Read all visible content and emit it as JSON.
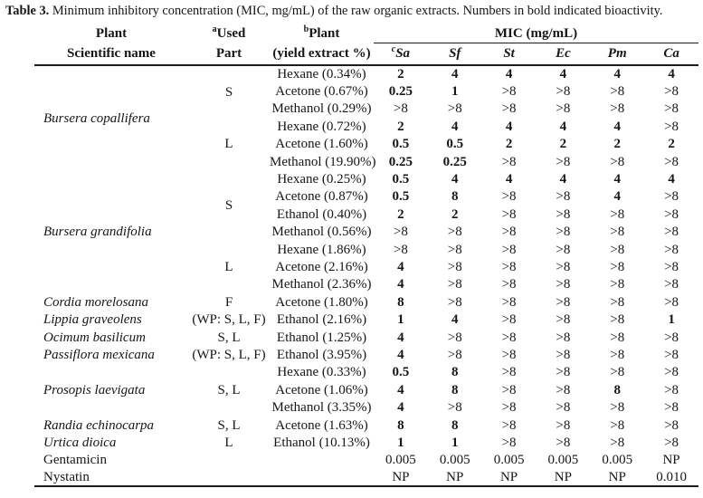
{
  "title": {
    "label": "Table 3.",
    "text": "Minimum inhibitory concentration (MIC, mg/mL) of the raw organic extracts. Numbers in bold indicated bioactivity."
  },
  "header": {
    "plant_line1": "Plant",
    "plant_line2": "Scientific name",
    "used_sup": "a",
    "used_line1": "Used",
    "used_line2": "Part",
    "yield_sup": "b",
    "yield_line1": "Plant",
    "yield_line2": "(yield extract %)",
    "mic_group": "MIC (mg/mL)",
    "organisms": [
      {
        "sup": "c",
        "name": "Sa"
      },
      {
        "sup": "",
        "name": "Sf"
      },
      {
        "sup": "",
        "name": "St"
      },
      {
        "sup": "",
        "name": "Ec"
      },
      {
        "sup": "",
        "name": "Pm"
      },
      {
        "sup": "",
        "name": "Ca"
      }
    ]
  },
  "rows": [
    {
      "plant": "Bursera copallifera",
      "plant_rs": 6,
      "part": "S",
      "part_rs": 3,
      "extract": "Hexane (0.34%)",
      "mic": [
        "2",
        "4",
        "4",
        "4",
        "4",
        "4"
      ],
      "bold": [
        1,
        1,
        1,
        1,
        1,
        1
      ]
    },
    {
      "extract": "Acetone (0.67%)",
      "mic": [
        "0.25",
        "1",
        ">8",
        ">8",
        ">8",
        ">8"
      ],
      "bold": [
        1,
        1,
        0,
        0,
        0,
        0
      ]
    },
    {
      "extract": "Methanol (0.29%)",
      "mic": [
        ">8",
        ">8",
        ">8",
        ">8",
        ">8",
        ">8"
      ],
      "bold": [
        0,
        0,
        0,
        0,
        0,
        0
      ]
    },
    {
      "part": "L",
      "part_rs": 3,
      "extract": "Hexane (0.72%)",
      "mic": [
        "2",
        "4",
        "4",
        "4",
        "4",
        ">8"
      ],
      "bold": [
        1,
        1,
        1,
        1,
        1,
        0
      ]
    },
    {
      "extract": "Acetone (1.60%)",
      "mic": [
        "0.5",
        "0.5",
        "2",
        "2",
        "2",
        "2"
      ],
      "bold": [
        1,
        1,
        1,
        1,
        1,
        1
      ]
    },
    {
      "extract": "Methanol (19.90%)",
      "mic": [
        "0.25",
        "0.25",
        ">8",
        ">8",
        ">8",
        ">8"
      ],
      "bold": [
        1,
        1,
        0,
        0,
        0,
        0
      ]
    },
    {
      "plant": "Bursera grandifolia",
      "plant_rs": 7,
      "part": "S",
      "part_rs": 4,
      "extract": "Hexane (0.25%)",
      "mic": [
        "0.5",
        "4",
        "4",
        "4",
        "4",
        "4"
      ],
      "bold": [
        1,
        1,
        1,
        1,
        1,
        1
      ]
    },
    {
      "extract": "Acetone (0.87%)",
      "mic": [
        "0.5",
        "8",
        ">8",
        ">8",
        "4",
        ">8"
      ],
      "bold": [
        1,
        1,
        0,
        0,
        1,
        0
      ]
    },
    {
      "extract": "Ethanol (0.40%)",
      "mic": [
        "2",
        "2",
        ">8",
        ">8",
        ">8",
        ">8"
      ],
      "bold": [
        1,
        1,
        0,
        0,
        0,
        0
      ]
    },
    {
      "extract": "Methanol (0.56%)",
      "mic": [
        ">8",
        ">8",
        ">8",
        ">8",
        ">8",
        ">8"
      ],
      "bold": [
        0,
        0,
        0,
        0,
        0,
        0
      ]
    },
    {
      "part": "L",
      "part_rs": 3,
      "extract": "Hexane (1.86%)",
      "mic": [
        ">8",
        ">8",
        ">8",
        ">8",
        ">8",
        ">8"
      ],
      "bold": [
        0,
        0,
        0,
        0,
        0,
        0
      ]
    },
    {
      "extract": "Acetone (2.16%)",
      "mic": [
        "4",
        ">8",
        ">8",
        ">8",
        ">8",
        ">8"
      ],
      "bold": [
        1,
        0,
        0,
        0,
        0,
        0
      ]
    },
    {
      "extract": "Methanol (2.36%)",
      "mic": [
        "4",
        ">8",
        ">8",
        ">8",
        ">8",
        ">8"
      ],
      "bold": [
        1,
        0,
        0,
        0,
        0,
        0
      ]
    },
    {
      "plant": "Cordia morelosana",
      "part": "F",
      "extract": "Acetone (1.80%)",
      "mic": [
        "8",
        ">8",
        ">8",
        ">8",
        ">8",
        ">8"
      ],
      "bold": [
        1,
        0,
        0,
        0,
        0,
        0
      ]
    },
    {
      "plant": "Lippia graveolens",
      "part": "(WP: S, L, F)",
      "extract": "Ethanol (2.16%)",
      "mic": [
        "1",
        "4",
        ">8",
        ">8",
        ">8",
        "1"
      ],
      "bold": [
        1,
        1,
        0,
        0,
        0,
        1
      ]
    },
    {
      "plant": "Ocimum basilicum",
      "part": "S, L",
      "extract": "Ethanol (1.25%)",
      "mic": [
        "4",
        ">8",
        ">8",
        ">8",
        ">8",
        ">8"
      ],
      "bold": [
        1,
        0,
        0,
        0,
        0,
        0
      ]
    },
    {
      "plant": "Passiflora mexicana",
      "part": "(WP: S, L, F)",
      "extract": "Ethanol (3.95%)",
      "mic": [
        "4",
        ">8",
        ">8",
        ">8",
        ">8",
        ">8"
      ],
      "bold": [
        1,
        0,
        0,
        0,
        0,
        0
      ]
    },
    {
      "plant": "Prosopis laevigata",
      "plant_rs": 3,
      "part": "S, L",
      "part_rs": 3,
      "extract": "Hexane (0.33%)",
      "mic": [
        "0.5",
        "8",
        ">8",
        ">8",
        ">8",
        ">8"
      ],
      "bold": [
        1,
        1,
        0,
        0,
        0,
        0
      ]
    },
    {
      "extract": "Acetone (1.06%)",
      "mic": [
        "4",
        "8",
        ">8",
        ">8",
        "8",
        ">8"
      ],
      "bold": [
        1,
        1,
        0,
        0,
        1,
        0
      ]
    },
    {
      "extract": "Methanol (3.35%)",
      "mic": [
        "4",
        ">8",
        ">8",
        ">8",
        ">8",
        ">8"
      ],
      "bold": [
        1,
        0,
        0,
        0,
        0,
        0
      ]
    },
    {
      "plant": "Randia echinocarpa",
      "part": "S, L",
      "extract": "Acetone (1.63%)",
      "mic": [
        "8",
        "8",
        ">8",
        ">8",
        ">8",
        ">8"
      ],
      "bold": [
        1,
        1,
        0,
        0,
        0,
        0
      ]
    },
    {
      "plant": "Urtica dioica",
      "part": "L",
      "extract": "Ethanol (10.13%)",
      "mic": [
        "1",
        "1",
        ">8",
        ">8",
        ">8",
        ">8"
      ],
      "bold": [
        1,
        1,
        0,
        0,
        0,
        0
      ]
    },
    {
      "plant": "Gentamicin",
      "roman": 1,
      "part": "",
      "extract": "",
      "mic": [
        "0.005",
        "0.005",
        "0.005",
        "0.005",
        "0.005",
        "NP"
      ],
      "bold": [
        0,
        0,
        0,
        0,
        0,
        0
      ]
    },
    {
      "plant": "Nystatin",
      "roman": 1,
      "part": "",
      "extract": "",
      "mic": [
        "NP",
        "NP",
        "NP",
        "NP",
        "NP",
        "0.010"
      ],
      "bold": [
        0,
        0,
        0,
        0,
        0,
        0
      ]
    }
  ]
}
